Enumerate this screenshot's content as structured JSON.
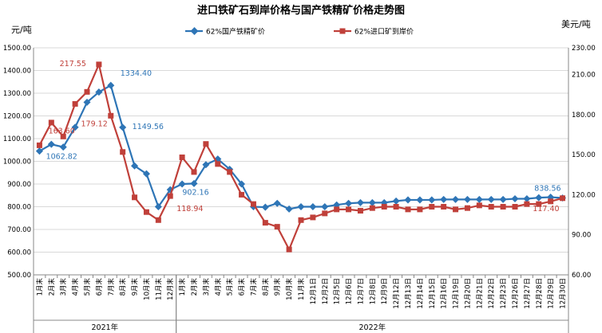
{
  "chart_data": {
    "type": "line",
    "title": "进口铁矿石到岸价格与国产铁精矿价格走势图",
    "y_left_label": "元/吨",
    "y_right_label": "美元/吨",
    "y_left_range": [
      500,
      1500
    ],
    "y_right_range": [
      60,
      230
    ],
    "y_left_ticks": [
      "500.00",
      "600.00",
      "700.00",
      "800.00",
      "900.00",
      "1000.00",
      "1100.00",
      "1200.00",
      "1300.00",
      "1400.00",
      "1500.00"
    ],
    "y_right_ticks": [
      "60.00",
      "90.00",
      "120.00",
      "150.00",
      "180.00",
      "210.00",
      "230.00"
    ],
    "x": [
      "1月末",
      "2月末",
      "3月末",
      "4月末",
      "5月末",
      "6月末",
      "7月末",
      "8月末",
      "9月末",
      "10月末",
      "11月末",
      "12月末",
      "1月末",
      "2月末",
      "3月末",
      "4月末",
      "5月末",
      "6月末",
      "7月末",
      "8月末",
      "9月末",
      "10月末",
      "11月末",
      "12月1日",
      "12月2日",
      "12月5日",
      "12月6日",
      "12月7日",
      "12月8日",
      "12月9日",
      "12月12日",
      "12月13日",
      "12月14日",
      "12月15日",
      "12月16日",
      "12月19日",
      "12月20日",
      "12月21日",
      "12月22日",
      "12月23日",
      "12月26日",
      "12月27日",
      "12月28日",
      "12月29日",
      "12月30日"
    ],
    "year_groups": [
      {
        "label": "2021年",
        "start": 0,
        "count": 12
      },
      {
        "label": "2022年",
        "start": 12,
        "count": 33
      }
    ],
    "series": [
      {
        "name": "62%国产铁精矿价",
        "color": "#2e75b6",
        "axis": "left",
        "values": [
          1045,
          1075,
          1062.82,
          1150,
          1260,
          1305,
          1334.4,
          1149.56,
          980,
          945,
          800,
          875,
          900,
          902.16,
          985,
          1010,
          965,
          900,
          800,
          798,
          815,
          790,
          800,
          800,
          800,
          808,
          815,
          818,
          818,
          818,
          825,
          830,
          830,
          830,
          832,
          832,
          832,
          832,
          832,
          832,
          835,
          835,
          840,
          842,
          838.56
        ]
      },
      {
        "name": "62%进口矿到岸价",
        "color": "#c0403a",
        "axis": "right",
        "values": [
          157,
          174,
          163.6,
          188,
          197,
          217.55,
          179.12,
          152,
          118,
          107,
          101,
          119,
          148,
          137,
          158,
          143,
          137,
          120,
          113,
          99,
          96,
          79,
          101,
          103,
          106,
          109,
          109,
          108,
          110,
          111,
          111,
          109,
          109,
          111,
          111,
          109,
          110,
          112,
          111,
          111,
          111,
          113,
          113,
          115,
          117.4
        ]
      }
    ],
    "data_labels": [
      {
        "series": 0,
        "index": 2,
        "text": "1062.82"
      },
      {
        "series": 0,
        "index": 6,
        "text": "1334.40"
      },
      {
        "series": 0,
        "index": 7,
        "text": "1149.56"
      },
      {
        "series": 0,
        "index": 13,
        "text": "902.16"
      },
      {
        "series": 0,
        "index": 44,
        "text": "838.56"
      },
      {
        "series": 1,
        "index": 2,
        "text": "163.60"
      },
      {
        "series": 1,
        "index": 5,
        "text": "217.55"
      },
      {
        "series": 1,
        "index": 6,
        "text": "179.12"
      },
      {
        "series": 1,
        "index": 11,
        "text": "118.94"
      },
      {
        "series": 1,
        "index": 44,
        "text": "117.40"
      }
    ],
    "grid": "horizontal",
    "legend_position": "top"
  }
}
